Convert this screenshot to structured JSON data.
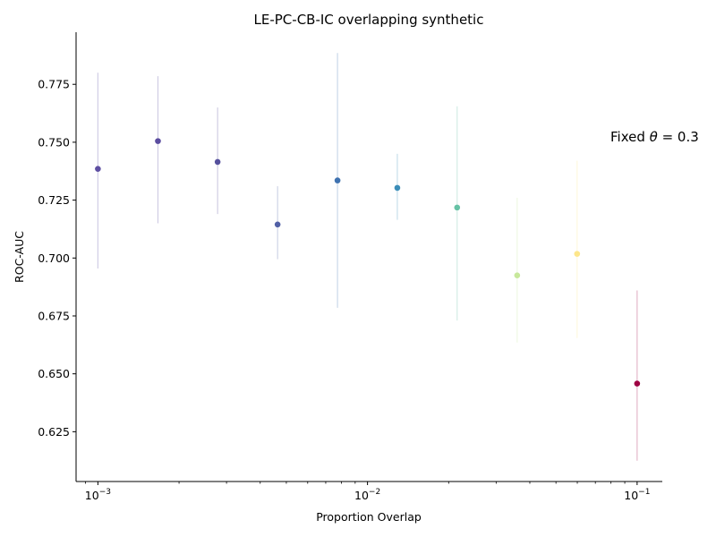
{
  "chart_data": {
    "type": "scatter",
    "title": "LE-PC-CB-IC overlapping synthetic",
    "xlabel": "Proportion Overlap",
    "ylabel": "ROC-AUC",
    "xscale": "log",
    "xlim": [
      0.00083,
      0.124
    ],
    "ylim": [
      0.6035,
      0.7975
    ],
    "x_ticks": [
      {
        "value": 0.001,
        "base": "10",
        "exp": "−3"
      },
      {
        "value": 0.01,
        "base": "10",
        "exp": "−2"
      },
      {
        "value": 0.1,
        "base": "10",
        "exp": "−1"
      }
    ],
    "y_ticks": [
      {
        "value": 0.625,
        "label": "0.625"
      },
      {
        "value": 0.65,
        "label": "0.650"
      },
      {
        "value": 0.675,
        "label": "0.675"
      },
      {
        "value": 0.7,
        "label": "0.700"
      },
      {
        "value": 0.725,
        "label": "0.725"
      },
      {
        "value": 0.75,
        "label": "0.750"
      },
      {
        "value": 0.775,
        "label": "0.775"
      }
    ],
    "annotation": {
      "prefix": "Fixed ",
      "symbol": "θ",
      "suffix": " = 0.3"
    },
    "points": [
      {
        "x": 0.001,
        "y": 0.7385,
        "low": 0.6955,
        "high": 0.78,
        "color": "#5e4fa2"
      },
      {
        "x": 0.00167,
        "y": 0.7505,
        "low": 0.715,
        "high": 0.7785,
        "color": "#5b4d9f"
      },
      {
        "x": 0.00278,
        "y": 0.7415,
        "low": 0.719,
        "high": 0.765,
        "color": "#55509c"
      },
      {
        "x": 0.00464,
        "y": 0.7145,
        "low": 0.6995,
        "high": 0.731,
        "color": "#5160a6"
      },
      {
        "x": 0.00774,
        "y": 0.7335,
        "low": 0.6785,
        "high": 0.7885,
        "color": "#3f72b0"
      },
      {
        "x": 0.0129,
        "y": 0.7303,
        "low": 0.7165,
        "high": 0.745,
        "color": "#3b8db8"
      },
      {
        "x": 0.0215,
        "y": 0.7218,
        "low": 0.673,
        "high": 0.7655,
        "color": "#66c2a5"
      },
      {
        "x": 0.0359,
        "y": 0.6925,
        "low": 0.6635,
        "high": 0.726,
        "color": "#c7e89b"
      },
      {
        "x": 0.0599,
        "y": 0.7018,
        "low": 0.6655,
        "high": 0.742,
        "color": "#fde68a"
      },
      {
        "x": 0.1,
        "y": 0.6458,
        "low": 0.6125,
        "high": 0.686,
        "color": "#9e0142"
      }
    ]
  }
}
